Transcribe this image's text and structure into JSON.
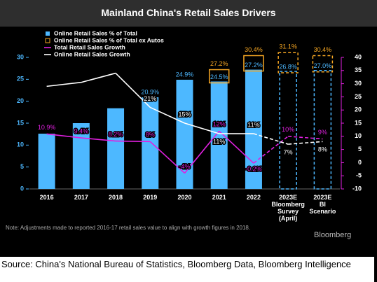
{
  "chart_data": {
    "type": "bar",
    "title": "Mainland China's Retail Sales Drivers",
    "categories": [
      "2016",
      "2017",
      "2018",
      "2019",
      "2020",
      "2021",
      "2022",
      "2023E\nBloomberg\nSurvey\n(April)",
      "2023E\nBI\nScenario"
    ],
    "series": [
      {
        "name": "Online Retail Sales % of Total",
        "type": "bar",
        "color": "#4db8ff",
        "values": [
          12.6,
          15,
          18.4,
          20.9,
          24.9,
          24.5,
          27.2,
          26.8,
          27.0
        ],
        "value_labels": [
          null,
          null,
          null,
          "20.9%",
          "24.9%",
          "24.5%",
          "27.2%",
          "26.8%",
          "27.0%"
        ],
        "dashed": [
          false,
          false,
          false,
          false,
          false,
          false,
          false,
          true,
          true
        ]
      },
      {
        "name": "Online Retail Sales % of Total ex Autos",
        "type": "box",
        "color": "#f5a623",
        "values": [
          null,
          null,
          null,
          null,
          null,
          27.2,
          30.4,
          31.1,
          30.4
        ],
        "value_labels": [
          null,
          null,
          null,
          null,
          null,
          "27.2%",
          "30.4%",
          "31.1%",
          "30.4%"
        ],
        "dashed": [
          false,
          false,
          false,
          false,
          false,
          false,
          false,
          true,
          true
        ]
      },
      {
        "name": "Total Retail Sales Growth",
        "type": "line",
        "axis": "y2",
        "color": "#e020e0",
        "values": [
          10.9,
          9.4,
          8.2,
          8,
          -4,
          12,
          -0.2,
          10,
          9
        ],
        "value_labels": [
          "10.9%",
          "9.4%",
          "8.2%",
          "8%",
          "-4%",
          "12%",
          "-0.2%",
          "10%",
          "9%"
        ],
        "dashed": [
          false,
          false,
          false,
          false,
          false,
          false,
          false,
          true,
          true
        ]
      },
      {
        "name": "Online Retail Sales Growth",
        "type": "line",
        "axis": "y2",
        "color": "#ffffff",
        "values": [
          29,
          30.5,
          34,
          21,
          15,
          11,
          11,
          7,
          8
        ],
        "value_labels": [
          null,
          null,
          null,
          "21%",
          "15%",
          "11%",
          "11%",
          "7%",
          "8%"
        ],
        "dashed": [
          false,
          false,
          false,
          false,
          false,
          false,
          false,
          true,
          true
        ]
      }
    ],
    "ylim": [
      0,
      30
    ],
    "yticks": [
      0,
      5,
      10,
      15,
      20,
      25,
      30
    ],
    "y2lim": [
      -10,
      40
    ],
    "y2ticks": [
      -10,
      -5,
      0,
      5,
      10,
      15,
      20,
      25,
      30,
      35,
      40
    ],
    "legend": "upper left",
    "note": "Note: Adjustments made to reported 2016-17 retail sales value to align with growth figures in 2018.",
    "logo": "Bloomberg",
    "source": "Source: China's National Bureau of Statistics, Bloomberg Data, Bloomberg Intelligence"
  }
}
